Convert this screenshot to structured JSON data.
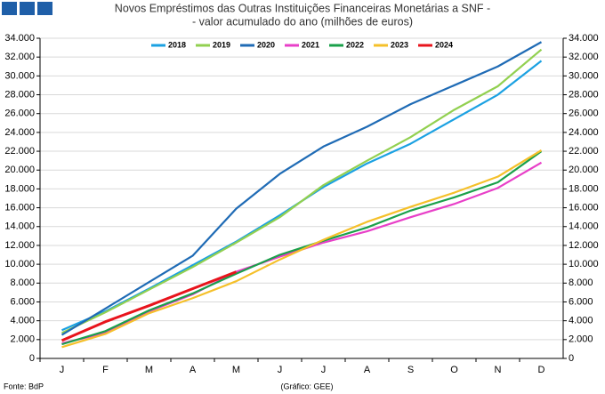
{
  "chart_data": {
    "type": "line",
    "title": "Novos Empréstimos das Outras Instituições Financeiras Monetárias a SNF -",
    "subtitle": "- valor acumulado do ano (milhões de euros)",
    "source": "Fonte: BdP",
    "credit": "(Gráfico: GEE)",
    "categories": [
      "J",
      "F",
      "M",
      "A",
      "M",
      "J",
      "J",
      "A",
      "S",
      "O",
      "N",
      "D"
    ],
    "ylim": [
      0,
      34000
    ],
    "yticks": [
      0,
      {
        "value": 2000,
        "label": "2.000"
      },
      {
        "value": 4000,
        "label": "4.000"
      },
      {
        "value": 6000,
        "label": "6.000"
      },
      {
        "value": 8000,
        "label": "8.000"
      },
      {
        "value": 10000,
        "label": "10.000"
      },
      {
        "value": 12000,
        "label": "12.000"
      },
      {
        "value": 14000,
        "label": "14.000"
      },
      {
        "value": 16000,
        "label": "16.000"
      },
      {
        "value": 18000,
        "label": "18.000"
      },
      {
        "value": 20000,
        "label": "20.000"
      },
      {
        "value": 22000,
        "label": "22.000"
      },
      {
        "value": 24000,
        "label": "24.000"
      },
      {
        "value": 26000,
        "label": "26.000"
      },
      {
        "value": 28000,
        "label": "28.000"
      },
      {
        "value": 30000,
        "label": "30.000"
      },
      {
        "value": 32000,
        "label": "32.000"
      },
      {
        "value": 34000,
        "label": "34.000"
      }
    ],
    "y2lim": [
      0,
      34000
    ],
    "y2ticks": [
      0,
      {
        "value": 2000,
        "label": "2.000"
      },
      {
        "value": 4000,
        "label": "4.000"
      },
      {
        "value": 6000,
        "label": "6.000"
      },
      {
        "value": 8000,
        "label": "8.000"
      },
      {
        "value": 10000,
        "label": "10.000"
      },
      {
        "value": 12000,
        "label": "12.000"
      },
      {
        "value": 14000,
        "label": "14.000"
      },
      {
        "value": 16000,
        "label": "16.000"
      },
      {
        "value": 18000,
        "label": "18.000"
      },
      {
        "value": 20000,
        "label": "20.000"
      },
      {
        "value": 22000,
        "label": "22.000"
      },
      {
        "value": 24000,
        "label": "24.000"
      },
      {
        "value": 26000,
        "label": "26.000"
      },
      {
        "value": 28000,
        "label": "28.000"
      },
      {
        "value": 30000,
        "label": "30.000"
      },
      {
        "value": 32000,
        "label": "32.000"
      },
      {
        "value": 34000,
        "label": "34.000"
      }
    ],
    "grid": true,
    "legend": "top",
    "series": [
      {
        "name": "2018",
        "color": "#1ba1e2",
        "values": [
          3000,
          5000,
          7400,
          9900,
          12400,
          15200,
          18200,
          20700,
          22800,
          25400,
          28000,
          31600
        ]
      },
      {
        "name": "2019",
        "color": "#92d050",
        "values": [
          2700,
          4900,
          7300,
          9700,
          12300,
          15000,
          18400,
          21000,
          23500,
          26400,
          28900,
          32800
        ]
      },
      {
        "name": "2020",
        "color": "#1f6bb5",
        "values": [
          2500,
          5300,
          8100,
          10900,
          15900,
          19600,
          22500,
          24600,
          27000,
          29000,
          31000,
          33600
        ]
      },
      {
        "name": "2021",
        "color": "#e83fc8",
        "values": [
          1600,
          2700,
          5000,
          6800,
          9200,
          10800,
          12300,
          13500,
          15000,
          16400,
          18100,
          20800
        ]
      },
      {
        "name": "2022",
        "color": "#1aa04a",
        "values": [
          1500,
          2900,
          5100,
          6900,
          9000,
          11000,
          12500,
          13900,
          15700,
          17100,
          18700,
          22000
        ]
      },
      {
        "name": "2023",
        "color": "#f5c02a",
        "values": [
          1200,
          2600,
          4800,
          6400,
          8200,
          10500,
          12600,
          14500,
          16100,
          17600,
          19300,
          22100
        ]
      },
      {
        "name": "2024",
        "color": "#e8141c",
        "values": [
          1900,
          3900,
          5600,
          7400,
          9200,
          null,
          null,
          null,
          null,
          null,
          null,
          null
        ]
      }
    ]
  }
}
